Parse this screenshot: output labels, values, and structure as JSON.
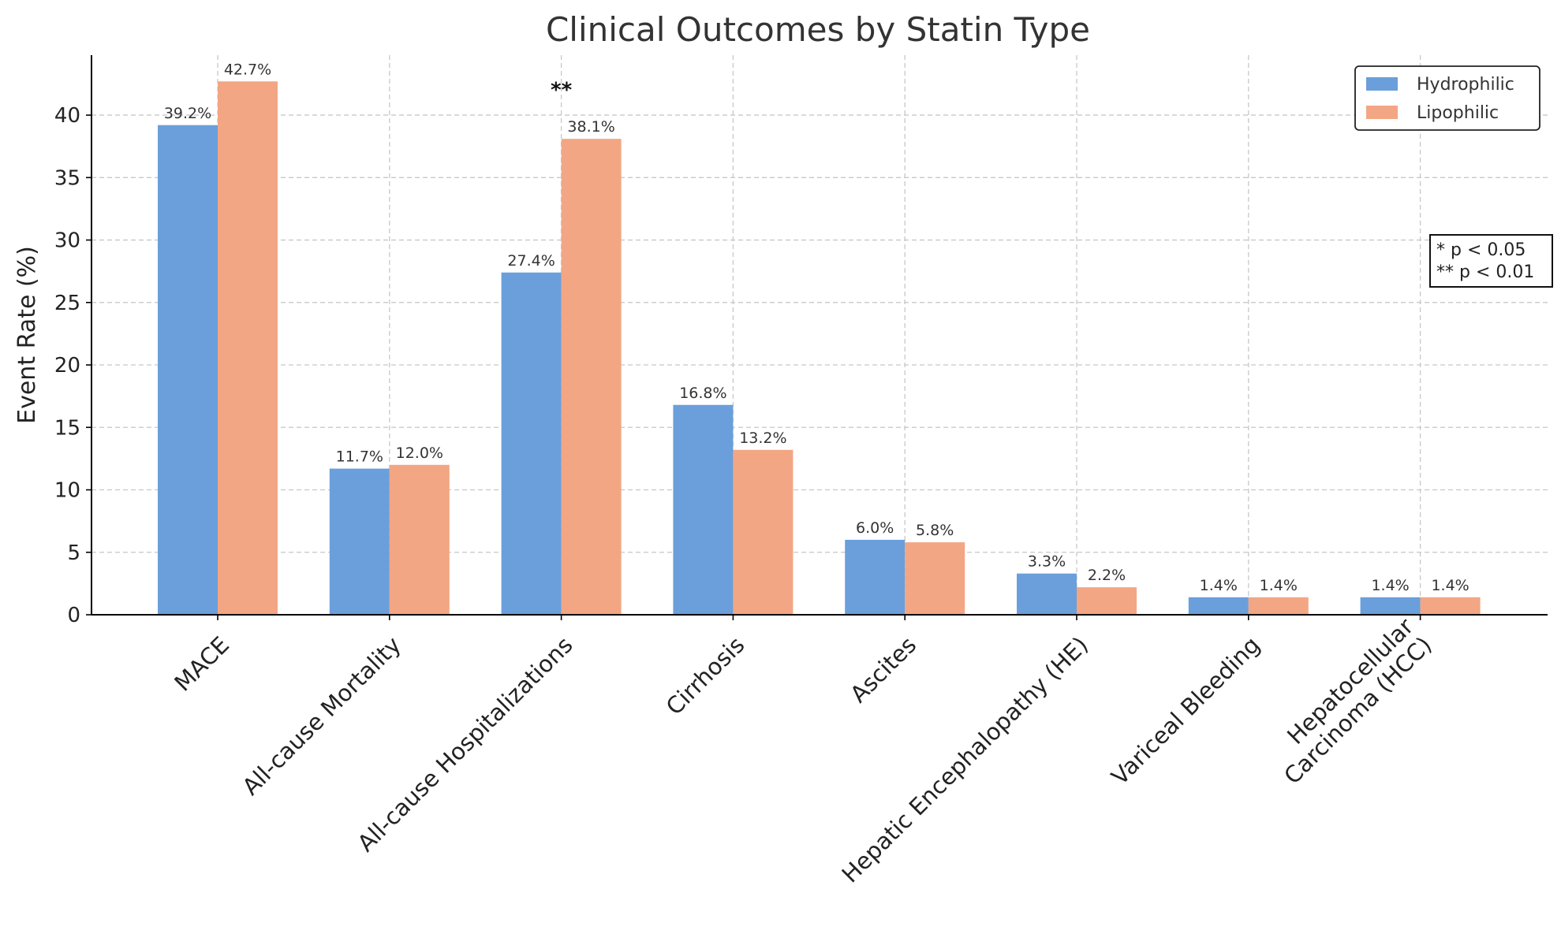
{
  "chart_data": {
    "type": "bar",
    "title": "Clinical Outcomes by Statin Type",
    "xlabel": "",
    "ylabel": "Event Rate (%)",
    "ylim": [
      0,
      44.8
    ],
    "yticks": [
      0,
      5,
      10,
      15,
      20,
      25,
      30,
      35,
      40
    ],
    "grid": true,
    "legend_position": "top-right",
    "categories": [
      "MACE",
      "All-cause Mortality",
      "All-cause Hospitalizations",
      "Cirrhosis",
      "Ascites",
      "Hepatic Encephalopathy (HE)",
      "Variceal Bleeding",
      "Hepatocellular\nCarcinoma (HCC)"
    ],
    "series": [
      {
        "name": "Hydrophilic",
        "color": "#6a9fdb",
        "values": [
          39.2,
          11.7,
          27.4,
          16.8,
          6.0,
          3.3,
          1.4,
          1.4
        ],
        "labels": [
          "39.2%",
          "11.7%",
          "27.4%",
          "16.8%",
          "6.0%",
          "3.3%",
          "1.4%",
          "1.4%"
        ]
      },
      {
        "name": "Lipophilic",
        "color": "#f3a683",
        "values": [
          42.7,
          12.0,
          38.1,
          13.2,
          5.8,
          2.2,
          1.4,
          1.4
        ],
        "labels": [
          "42.7%",
          "12.0%",
          "38.1%",
          "13.2%",
          "5.8%",
          "2.2%",
          "1.4%",
          "1.4%"
        ]
      }
    ],
    "annotations": [
      {
        "category_index": 2,
        "text": "**",
        "y": 42.0
      }
    ],
    "significance_note": [
      "*  p < 0.05",
      "** p < 0.01"
    ]
  }
}
